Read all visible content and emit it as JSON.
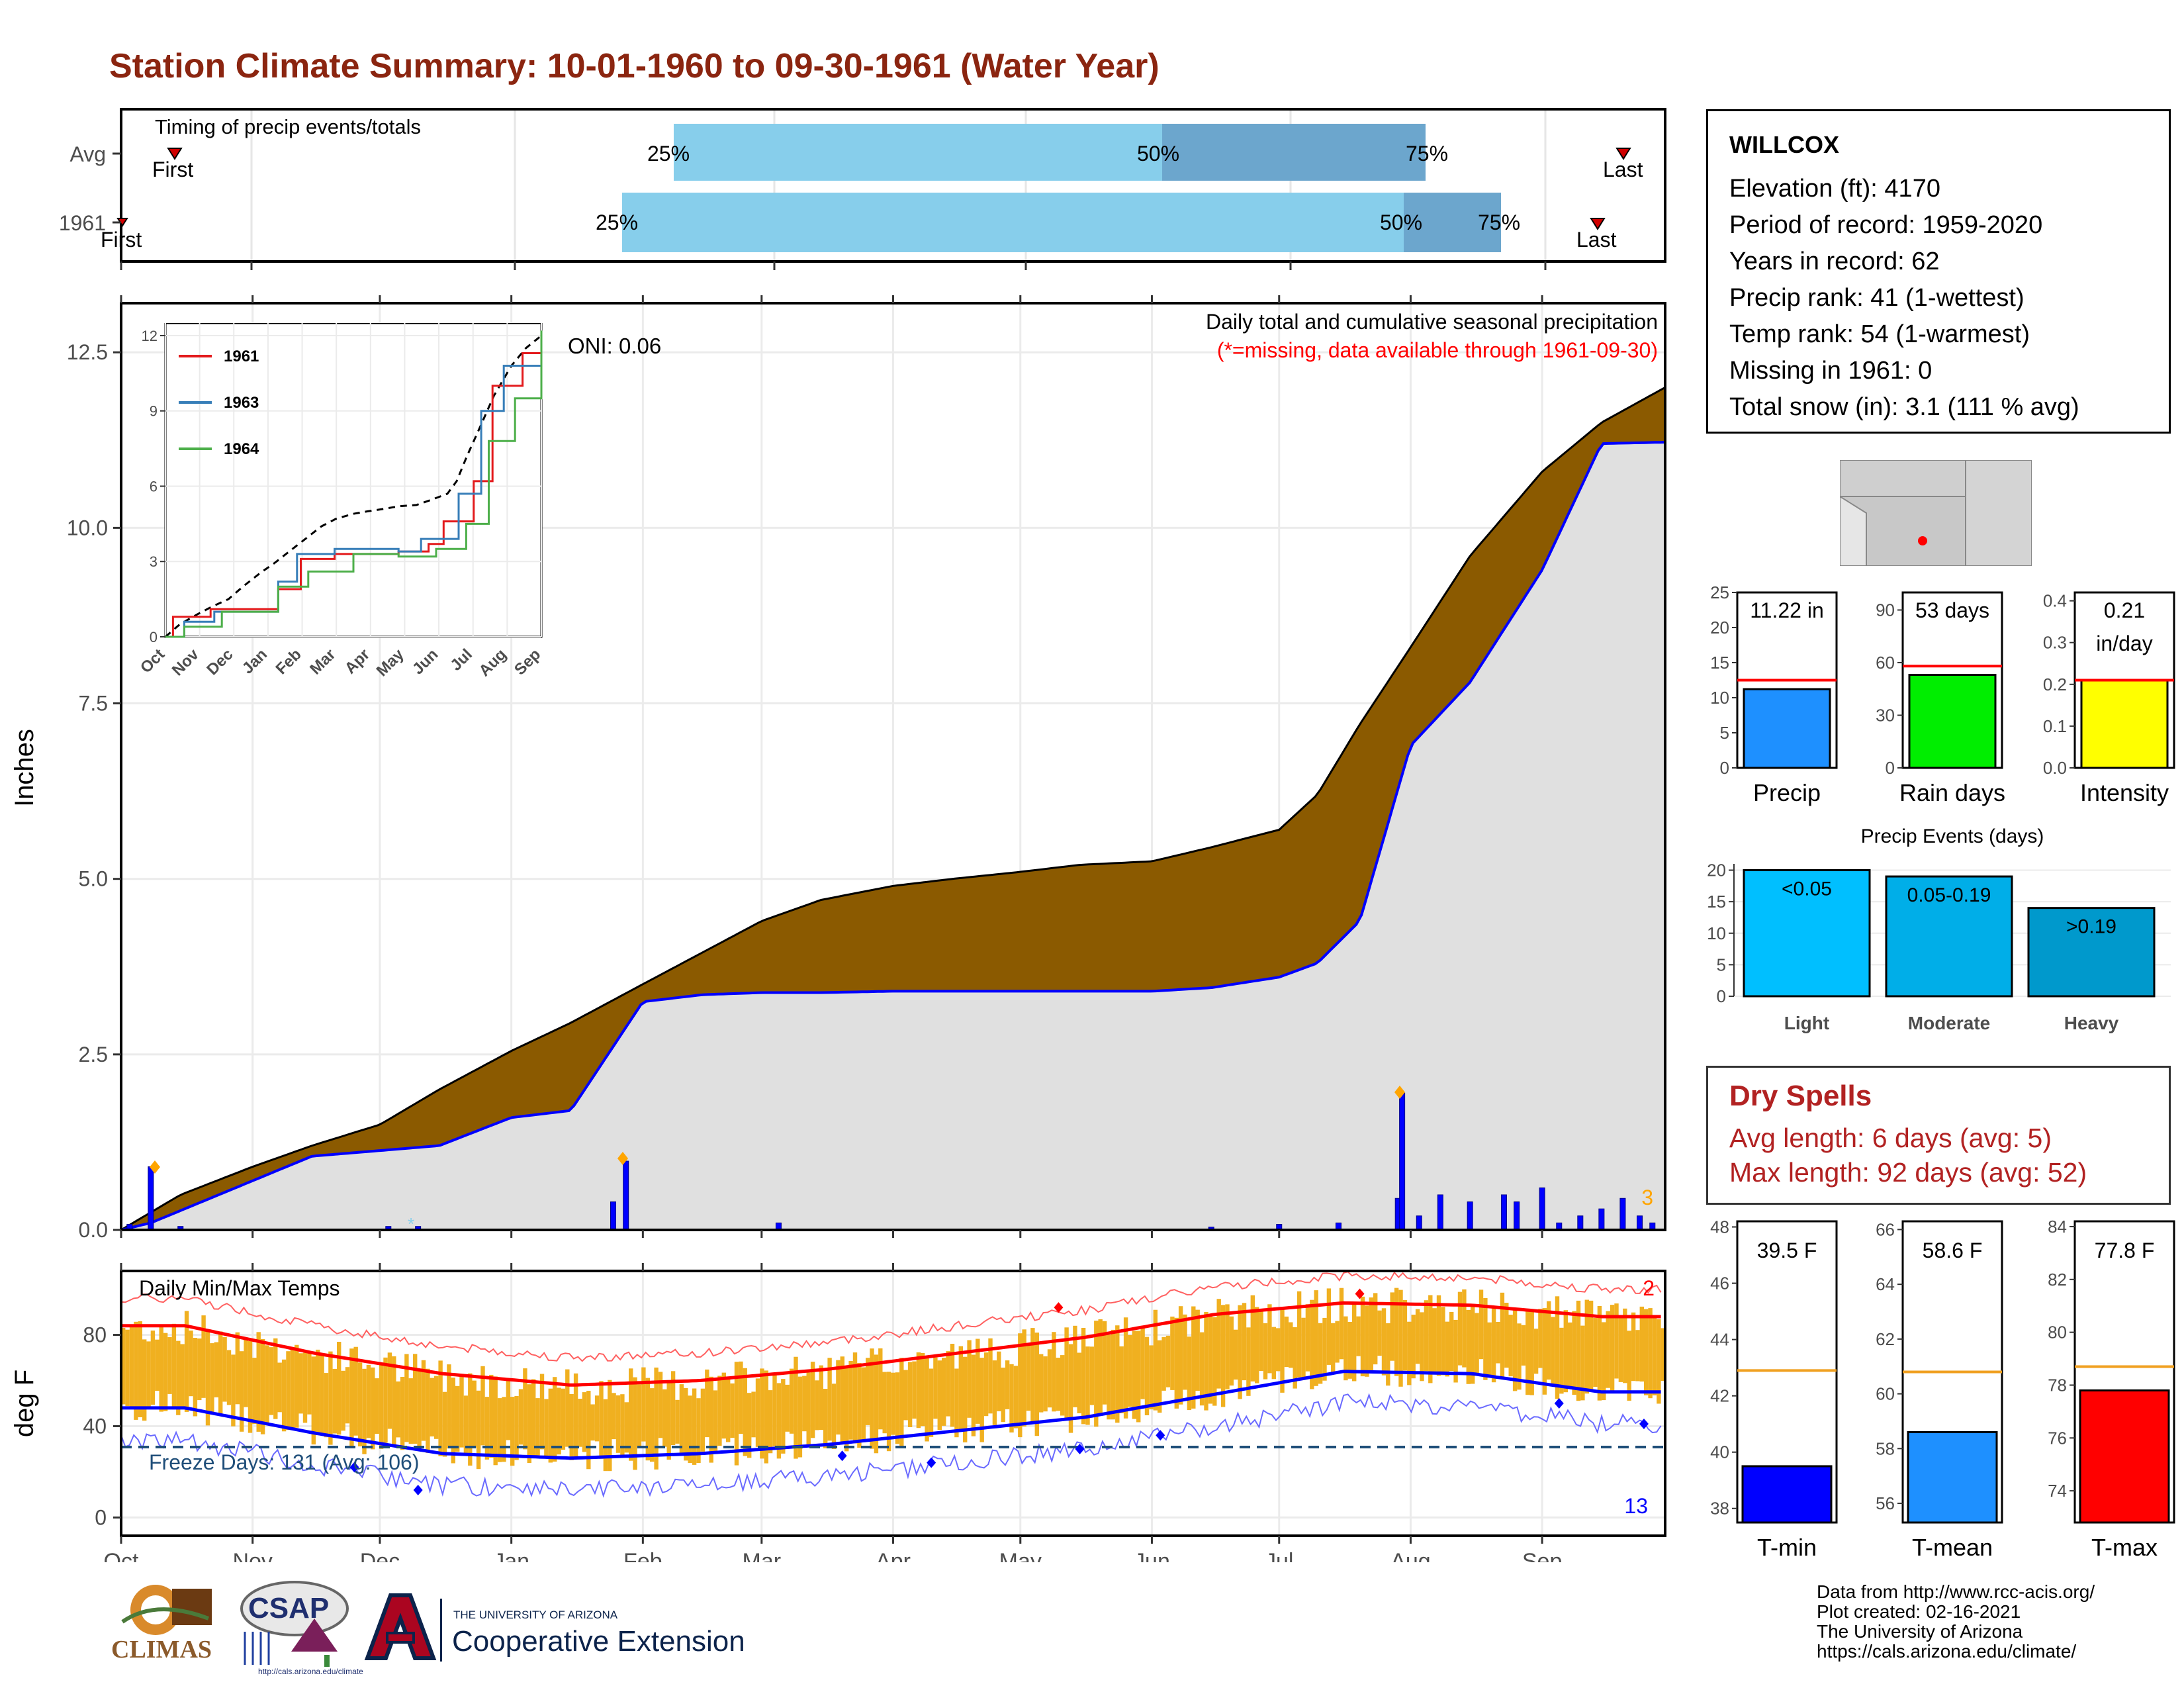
{
  "title": "Station Climate Summary: 10-01-1960 to 09-30-1961 (Water Year)",
  "colors": {
    "title": "#8b2510",
    "cum_fill": "#8b5a00",
    "wet_fill": "#1f8f1f",
    "precip_bar": "#0000ff",
    "tmin": "#0000ff",
    "tmax": "#ff0000",
    "temp_range": "#f0b020",
    "timing_light": "#87ceeb",
    "timing_dark": "#6ca6cd"
  },
  "timing": {
    "label": "Timing of precip events/totals",
    "rows": [
      {
        "name": "Avg",
        "first_label": "First",
        "last_label": "Last",
        "p25": "25%",
        "p50": "50%",
        "p75": "75%"
      },
      {
        "name": "1961",
        "first_label": "First",
        "last_label": "Last",
        "p25": "25%",
        "p50": "50%",
        "p75": "75%"
      }
    ]
  },
  "station": {
    "name": "WILLCOX",
    "lines": [
      "Elevation (ft): 4170",
      "Period of record: 1959-2020",
      "Years in record: 62",
      "Precip rank: 41 (1-wettest)",
      "Temp rank: 54 (1-warmest)",
      "Missing in 1961: 0",
      "Total snow (in): 3.1 (111 % avg)"
    ]
  },
  "precip_panel": {
    "ylabel": "Inches",
    "oni": "ONI: 0.06",
    "header1": "Daily total and cumulative seasonal precipitation",
    "header2": "(*=missing, data available through 1961-09-30)",
    "count_label": "3"
  },
  "inset": {
    "series": [
      {
        "name": "1961",
        "color": "#e31a1c"
      },
      {
        "name": "1963",
        "color": "#377eb8"
      },
      {
        "name": "1964",
        "color": "#4daf4a"
      }
    ],
    "months": [
      "Oct",
      "Nov",
      "Dec",
      "Jan",
      "Feb",
      "Mar",
      "Apr",
      "May",
      "Jun",
      "Jul",
      "Aug",
      "Sep"
    ],
    "yticks": [
      0,
      3,
      6,
      9,
      12
    ]
  },
  "temp_panel": {
    "ylabel": "deg F",
    "label": "Daily Min/Max Temps",
    "freeze": "Freeze Days: 131 (Avg: 106)",
    "max_count": "2",
    "min_count": "13"
  },
  "months": [
    "Oct",
    "Nov",
    "Dec",
    "Jan",
    "Feb",
    "Mar",
    "Apr",
    "May",
    "Jun",
    "Jul",
    "Aug",
    "Sep"
  ],
  "bars": {
    "precip": {
      "value_label": "11.22 in",
      "name": "Precip"
    },
    "raindays": {
      "value_label": "53 days",
      "name": "Rain days"
    },
    "intensity": {
      "value_label": "0.21 in/day",
      "name": "Intensity"
    }
  },
  "events": {
    "title": "Precip Events (days)",
    "bars": [
      {
        "label": "<0.05",
        "name": "Light"
      },
      {
        "label": "0.05-0.19",
        "name": "Moderate"
      },
      {
        "label": ">0.19",
        "name": "Heavy"
      }
    ]
  },
  "dry": {
    "title": "Dry Spells",
    "avg": "Avg length: 6 days (avg: 5)",
    "max": "Max length: 92 days (avg: 52)"
  },
  "temps": {
    "tmin": {
      "label": "39.5 F",
      "name": "T-min"
    },
    "tmean": {
      "label": "58.6 F",
      "name": "T-mean"
    },
    "tmax": {
      "label": "77.8 F",
      "name": "T-max"
    }
  },
  "credits": [
    "Data from http://www.rcc-acis.org/",
    "Plot created: 02-16-2021",
    "The University of Arizona",
    "https://cals.arizona.edu/climate/"
  ],
  "logos": {
    "climas": "CLIMAS",
    "csap": "CSAP",
    "csap_url": "http://cals.arizona.edu/climate",
    "ua_small": "THE UNIVERSITY OF ARIZONA",
    "ua_big": "Cooperative Extension"
  },
  "chart_data": [
    {
      "type": "area",
      "title": "Daily total and cumulative seasonal precipitation",
      "ylabel": "Inches",
      "ylim": [
        0,
        13.2
      ],
      "x_ticks": [
        "Oct",
        "Nov",
        "Dec",
        "Jan",
        "Feb",
        "Mar",
        "Apr",
        "May",
        "Jun",
        "Jul",
        "Aug",
        "Sep"
      ],
      "series": [
        {
          "name": "1961",
          "x": [
            "1960-10-01",
            "1960-10-08",
            "1960-11-15",
            "1960-12-15",
            "1961-01-01",
            "1961-01-15",
            "1961-02-01",
            "1961-02-15",
            "1961-03-01",
            "1961-03-15",
            "1961-04-01",
            "1961-04-15",
            "1961-05-01",
            "1961-05-15",
            "1961-06-01",
            "1961-06-15",
            "1961-07-01",
            "1961-07-10",
            "1961-07-20",
            "1961-08-01",
            "1961-08-15",
            "1961-09-01",
            "1961-09-15",
            "1961-09-30"
          ],
          "values": [
            0,
            0.1,
            1.05,
            1.2,
            1.6,
            1.7,
            3.25,
            3.35,
            3.38,
            3.38,
            3.4,
            3.4,
            3.4,
            3.4,
            3.4,
            3.45,
            3.6,
            3.8,
            4.4,
            6.9,
            7.8,
            9.4,
            11.2,
            11.22
          ]
        },
        {
          "name": "Avg",
          "x": [
            "1960-10-01",
            "1960-10-15",
            "1960-11-01",
            "1960-11-15",
            "1960-12-01",
            "1960-12-15",
            "1961-01-01",
            "1961-01-15",
            "1961-02-01",
            "1961-02-15",
            "1961-03-01",
            "1961-03-15",
            "1961-04-01",
            "1961-04-15",
            "1961-05-01",
            "1961-05-15",
            "1961-06-01",
            "1961-06-15",
            "1961-07-01",
            "1961-07-10",
            "1961-07-20",
            "1961-08-01",
            "1961-08-15",
            "1961-09-01",
            "1961-09-15",
            "1961-09-30"
          ],
          "values": [
            0,
            0.5,
            0.9,
            1.2,
            1.5,
            2.0,
            2.55,
            2.95,
            3.5,
            3.95,
            4.4,
            4.7,
            4.9,
            5.0,
            5.1,
            5.2,
            5.25,
            5.45,
            5.7,
            6.2,
            7.2,
            8.3,
            9.6,
            10.8,
            11.5,
            12.0
          ]
        }
      ],
      "daily_precip": {
        "x": [
          "1960-10-03",
          "1960-10-08",
          "1960-10-15",
          "1960-12-03",
          "1960-12-10",
          "1961-01-25",
          "1961-01-28",
          "1961-03-05",
          "1961-06-15",
          "1961-07-01",
          "1961-07-15",
          "1961-07-29",
          "1961-07-30",
          "1961-08-03",
          "1961-08-08",
          "1961-08-15",
          "1961-08-23",
          "1961-08-26",
          "1961-09-01",
          "1961-09-05",
          "1961-09-10",
          "1961-09-15",
          "1961-09-20",
          "1961-09-24",
          "1961-09-27"
        ],
        "values": [
          0.08,
          0.9,
          0.05,
          0.05,
          0.05,
          0.4,
          0.98,
          0.1,
          0.04,
          0.08,
          0.1,
          0.45,
          1.95,
          0.2,
          0.5,
          0.4,
          0.5,
          0.4,
          0.6,
          0.1,
          0.2,
          0.3,
          0.45,
          0.2,
          0.1
        ]
      }
    },
    {
      "type": "line",
      "title": "Daily Min/Max Temps",
      "ylabel": "deg F",
      "ylim": [
        -8,
        108
      ],
      "x_ticks": [
        "Oct",
        "Nov",
        "Dec",
        "Jan",
        "Feb",
        "Mar",
        "Apr",
        "May",
        "Jun",
        "Jul",
        "Aug",
        "Sep"
      ],
      "series": [
        {
          "name": "Avg Tmax",
          "x": [
            "Oct",
            "Nov",
            "Dec",
            "Jan",
            "Feb",
            "Mar",
            "Apr",
            "May",
            "Jun",
            "Jul",
            "Aug",
            "Sep"
          ],
          "values": [
            84,
            72,
            63,
            58,
            60,
            65,
            72,
            79,
            89,
            94,
            93,
            88
          ]
        },
        {
          "name": "Avg Tmin",
          "x": [
            "Oct",
            "Nov",
            "Dec",
            "Jan",
            "Feb",
            "Mar",
            "Apr",
            "May",
            "Jun",
            "Jul",
            "Aug",
            "Sep"
          ],
          "values": [
            48,
            37,
            28,
            26,
            28,
            32,
            38,
            44,
            54,
            64,
            63,
            55
          ]
        }
      ],
      "freeze_threshold": 32
    },
    {
      "type": "bar",
      "categories": [
        "Precip"
      ],
      "values": [
        11.22
      ],
      "ylim": [
        0,
        25
      ],
      "reference": 12.5
    },
    {
      "type": "bar",
      "categories": [
        "Rain days"
      ],
      "values": [
        53
      ],
      "ylim": [
        0,
        100
      ],
      "reference": 58
    },
    {
      "type": "bar",
      "categories": [
        "Intensity"
      ],
      "values": [
        0.21
      ],
      "ylim": [
        0,
        0.42
      ],
      "reference": 0.21
    },
    {
      "type": "bar",
      "title": "Precip Events (days)",
      "categories": [
        "Light",
        "Moderate",
        "Heavy"
      ],
      "values": [
        20,
        19,
        14
      ],
      "ylim": [
        0,
        21
      ]
    },
    {
      "type": "bar",
      "categories": [
        "T-min"
      ],
      "values": [
        39.5
      ],
      "ylim": [
        37.5,
        48.2
      ],
      "reference": 42.9
    },
    {
      "type": "bar",
      "categories": [
        "T-mean"
      ],
      "values": [
        58.6
      ],
      "ylim": [
        55.3,
        66.3
      ],
      "reference": 60.8
    },
    {
      "type": "bar",
      "categories": [
        "T-max"
      ],
      "values": [
        77.8
      ],
      "ylim": [
        72.8,
        84.2
      ],
      "reference": 78.7
    }
  ]
}
